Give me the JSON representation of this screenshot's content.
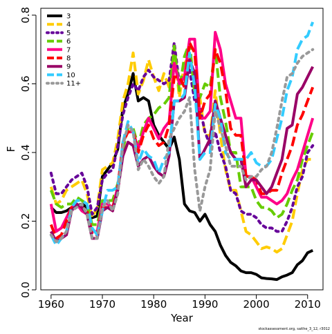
{
  "chart_data": {
    "type": "line",
    "title": "",
    "xlabel": "Year",
    "ylabel": "F",
    "xlim": [
      1958,
      2013
    ],
    "ylim": [
      0.0,
      0.82
    ],
    "xticks": [
      1960,
      1970,
      1980,
      1990,
      2000,
      2010
    ],
    "yticks": [
      0.0,
      0.2,
      0.4,
      0.6,
      0.8
    ],
    "ytick_labels": [
      "0.0",
      "0.2",
      "0.4",
      "0.6",
      "0.8"
    ],
    "grid": false,
    "legend_position": "top-left",
    "footer": "stockassessment.org, saithe_3_12, r3012",
    "series": [
      {
        "name": "3",
        "color": "#000000",
        "dash": "solid",
        "x": [
          1960,
          1961,
          1962,
          1963,
          1964,
          1965,
          1966,
          1967,
          1968,
          1969,
          1970,
          1971,
          1972,
          1973,
          1974,
          1975,
          1976,
          1977,
          1978,
          1979,
          1980,
          1981,
          1982,
          1983,
          1984,
          1985,
          1986,
          1987,
          1988,
          1989,
          1990,
          1991,
          1992,
          1993,
          1994,
          1995,
          1996,
          1997,
          1998,
          1999,
          2000,
          2001,
          2002,
          2003,
          2004,
          2005,
          2006,
          2007,
          2008,
          2009,
          2010,
          2011
        ],
        "y": [
          0.24,
          0.225,
          0.225,
          0.23,
          0.24,
          0.245,
          0.25,
          0.24,
          0.21,
          0.215,
          0.33,
          0.35,
          0.37,
          0.41,
          0.53,
          0.57,
          0.63,
          0.55,
          0.56,
          0.55,
          0.48,
          0.45,
          0.43,
          0.41,
          0.445,
          0.38,
          0.25,
          0.23,
          0.225,
          0.2,
          0.22,
          0.19,
          0.17,
          0.13,
          0.1,
          0.08,
          0.07,
          0.055,
          0.05,
          0.05,
          0.045,
          0.035,
          0.033,
          0.032,
          0.03,
          0.038,
          0.043,
          0.05,
          0.073,
          0.085,
          0.108,
          0.115
        ]
      },
      {
        "name": "4",
        "color": "#ffcc00",
        "dash": "long",
        "x": [
          1960,
          1961,
          1962,
          1963,
          1964,
          1965,
          1966,
          1967,
          1968,
          1969,
          1970,
          1971,
          1972,
          1973,
          1974,
          1975,
          1976,
          1977,
          1978,
          1979,
          1980,
          1981,
          1982,
          1983,
          1984,
          1985,
          1986,
          1987,
          1988,
          1989,
          1990,
          1991,
          1992,
          1993,
          1994,
          1995,
          1996,
          1997,
          1998,
          1999,
          2000,
          2001,
          2002,
          2003,
          2004,
          2005,
          2006,
          2007,
          2008,
          2009,
          2010,
          2011
        ],
        "y": [
          0.3,
          0.25,
          0.26,
          0.29,
          0.3,
          0.31,
          0.32,
          0.28,
          0.21,
          0.24,
          0.35,
          0.36,
          0.37,
          0.44,
          0.55,
          0.6,
          0.69,
          0.57,
          0.61,
          0.67,
          0.62,
          0.58,
          0.63,
          0.59,
          0.7,
          0.56,
          0.66,
          0.68,
          0.59,
          0.56,
          0.45,
          0.45,
          0.58,
          0.45,
          0.35,
          0.29,
          0.29,
          0.23,
          0.17,
          0.16,
          0.14,
          0.12,
          0.125,
          0.12,
          0.11,
          0.12,
          0.16,
          0.2,
          0.28,
          0.35,
          0.38,
          0.38
        ]
      },
      {
        "name": "5",
        "color": "#660099",
        "dash": "dotted",
        "x": [
          1960,
          1961,
          1962,
          1963,
          1964,
          1965,
          1966,
          1967,
          1968,
          1969,
          1970,
          1971,
          1972,
          1973,
          1974,
          1975,
          1976,
          1977,
          1978,
          1979,
          1980,
          1981,
          1982,
          1983,
          1984,
          1985,
          1986,
          1987,
          1988,
          1989,
          1990,
          1991,
          1992,
          1993,
          1994,
          1995,
          1996,
          1997,
          1998,
          1999,
          2000,
          2001,
          2002,
          2003,
          2004,
          2005,
          2006,
          2007,
          2008,
          2009,
          2010,
          2011
        ],
        "y": [
          0.34,
          0.28,
          0.28,
          0.3,
          0.32,
          0.33,
          0.34,
          0.3,
          0.22,
          0.24,
          0.32,
          0.34,
          0.35,
          0.42,
          0.51,
          0.56,
          0.6,
          0.58,
          0.62,
          0.64,
          0.62,
          0.61,
          0.6,
          0.61,
          0.72,
          0.6,
          0.62,
          0.64,
          0.55,
          0.53,
          0.46,
          0.42,
          0.46,
          0.4,
          0.36,
          0.29,
          0.28,
          0.23,
          0.22,
          0.22,
          0.21,
          0.19,
          0.18,
          0.18,
          0.17,
          0.17,
          0.2,
          0.24,
          0.3,
          0.33,
          0.4,
          0.42
        ]
      },
      {
        "name": "6",
        "color": "#66cc00",
        "dash": "long",
        "x": [
          1960,
          1961,
          1962,
          1963,
          1964,
          1965,
          1966,
          1967,
          1968,
          1969,
          1970,
          1971,
          1972,
          1973,
          1974,
          1975,
          1976,
          1977,
          1978,
          1979,
          1980,
          1981,
          1982,
          1983,
          1984,
          1985,
          1986,
          1987,
          1988,
          1989,
          1990,
          1991,
          1992,
          1993,
          1994,
          1995,
          1996,
          1997,
          1998,
          1999,
          2000,
          2001,
          2002,
          2003,
          2004,
          2005,
          2006,
          2007,
          2008,
          2009,
          2010,
          2011
        ],
        "y": [
          0.29,
          0.25,
          0.24,
          0.25,
          0.25,
          0.27,
          0.26,
          0.25,
          0.19,
          0.19,
          0.26,
          0.26,
          0.26,
          0.31,
          0.41,
          0.47,
          0.47,
          0.42,
          0.48,
          0.5,
          0.51,
          0.53,
          0.54,
          0.56,
          0.71,
          0.58,
          0.68,
          0.72,
          0.57,
          0.56,
          0.6,
          0.59,
          0.7,
          0.56,
          0.49,
          0.4,
          0.4,
          0.3,
          0.3,
          0.3,
          0.26,
          0.24,
          0.24,
          0.23,
          0.21,
          0.22,
          0.25,
          0.29,
          0.32,
          0.38,
          0.42,
          0.46
        ]
      },
      {
        "name": "7",
        "color": "#ff0088",
        "dash": "solid",
        "x": [
          1960,
          1961,
          1962,
          1963,
          1964,
          1965,
          1966,
          1967,
          1968,
          1969,
          1970,
          1971,
          1972,
          1973,
          1974,
          1975,
          1976,
          1977,
          1978,
          1979,
          1980,
          1981,
          1982,
          1983,
          1984,
          1985,
          1986,
          1987,
          1988,
          1989,
          1990,
          1991,
          1992,
          1993,
          1994,
          1995,
          1996,
          1997,
          1998,
          1999,
          2000,
          2001,
          2002,
          2003,
          2004,
          2005,
          2006,
          2007,
          2008,
          2009,
          2010,
          2011
        ],
        "y": [
          0.25,
          0.17,
          0.18,
          0.21,
          0.24,
          0.25,
          0.23,
          0.22,
          0.17,
          0.17,
          0.25,
          0.25,
          0.24,
          0.3,
          0.43,
          0.46,
          0.46,
          0.41,
          0.46,
          0.5,
          0.47,
          0.44,
          0.47,
          0.49,
          0.66,
          0.6,
          0.62,
          0.73,
          0.73,
          0.5,
          0.5,
          0.52,
          0.75,
          0.7,
          0.6,
          0.55,
          0.5,
          0.5,
          0.33,
          0.33,
          0.3,
          0.27,
          0.27,
          0.26,
          0.25,
          0.26,
          0.28,
          0.32,
          0.35,
          0.4,
          0.45,
          0.5
        ]
      },
      {
        "name": "8",
        "color": "#ff0000",
        "dash": "long",
        "x": [
          1960,
          1961,
          1962,
          1963,
          1964,
          1965,
          1966,
          1967,
          1968,
          1969,
          1970,
          1971,
          1972,
          1973,
          1974,
          1975,
          1976,
          1977,
          1978,
          1979,
          1980,
          1981,
          1982,
          1983,
          1984,
          1985,
          1986,
          1987,
          1988,
          1989,
          1990,
          1991,
          1992,
          1993,
          1994,
          1995,
          1996,
          1997,
          1998,
          1999,
          2000,
          2001,
          2002,
          2003,
          2004,
          2005,
          2006,
          2007,
          2008,
          2009,
          2010,
          2011
        ],
        "y": [
          0.19,
          0.15,
          0.16,
          0.2,
          0.24,
          0.25,
          0.24,
          0.23,
          0.16,
          0.16,
          0.24,
          0.24,
          0.24,
          0.29,
          0.43,
          0.46,
          0.46,
          0.4,
          0.45,
          0.48,
          0.44,
          0.42,
          0.43,
          0.48,
          0.62,
          0.62,
          0.59,
          0.72,
          0.69,
          0.5,
          0.55,
          0.57,
          0.7,
          0.66,
          0.58,
          0.47,
          0.45,
          0.45,
          0.33,
          0.33,
          0.32,
          0.28,
          0.28,
          0.29,
          0.29,
          0.34,
          0.38,
          0.42,
          0.48,
          0.51,
          0.55,
          0.59
        ]
      },
      {
        "name": "9",
        "color": "#990066",
        "dash": "solid",
        "x": [
          1960,
          1961,
          1962,
          1963,
          1964,
          1965,
          1966,
          1967,
          1968,
          1969,
          1970,
          1971,
          1972,
          1973,
          1974,
          1975,
          1976,
          1977,
          1978,
          1979,
          1980,
          1981,
          1982,
          1983,
          1984,
          1985,
          1986,
          1987,
          1988,
          1989,
          1990,
          1991,
          1992,
          1993,
          1994,
          1995,
          1996,
          1997,
          1998,
          1999,
          2000,
          2001,
          2002,
          2003,
          2004,
          2005,
          2006,
          2007,
          2008,
          2009,
          2010,
          2011
        ],
        "y": [
          0.17,
          0.14,
          0.15,
          0.16,
          0.23,
          0.25,
          0.24,
          0.22,
          0.15,
          0.15,
          0.23,
          0.24,
          0.23,
          0.29,
          0.39,
          0.43,
          0.42,
          0.36,
          0.38,
          0.39,
          0.36,
          0.34,
          0.33,
          0.39,
          0.55,
          0.55,
          0.56,
          0.67,
          0.63,
          0.38,
          0.41,
          0.44,
          0.55,
          0.5,
          0.45,
          0.4,
          0.38,
          0.38,
          0.3,
          0.32,
          0.32,
          0.3,
          0.28,
          0.3,
          0.34,
          0.38,
          0.47,
          0.48,
          0.57,
          0.59,
          0.62,
          0.65
        ]
      },
      {
        "name": "10",
        "color": "#33ccff",
        "dash": "long",
        "x": [
          1960,
          1961,
          1962,
          1963,
          1964,
          1965,
          1966,
          1967,
          1968,
          1969,
          1970,
          1971,
          1972,
          1973,
          1974,
          1975,
          1976,
          1977,
          1978,
          1979,
          1980,
          1981,
          1982,
          1983,
          1984,
          1985,
          1986,
          1987,
          1988,
          1989,
          1990,
          1991,
          1992,
          1993,
          1994,
          1995,
          1996,
          1997,
          1998,
          1999,
          2000,
          2001,
          2002,
          2003,
          2004,
          2005,
          2006,
          2007,
          2008,
          2009,
          2010,
          2011
        ],
        "y": [
          0.16,
          0.13,
          0.15,
          0.17,
          0.24,
          0.26,
          0.26,
          0.25,
          0.18,
          0.16,
          0.23,
          0.29,
          0.29,
          0.3,
          0.43,
          0.49,
          0.46,
          0.37,
          0.41,
          0.39,
          0.38,
          0.34,
          0.38,
          0.4,
          0.55,
          0.55,
          0.57,
          0.69,
          0.59,
          0.38,
          0.4,
          0.4,
          0.54,
          0.5,
          0.4,
          0.38,
          0.38,
          0.38,
          0.38,
          0.4,
          0.37,
          0.36,
          0.36,
          0.38,
          0.44,
          0.5,
          0.58,
          0.62,
          0.7,
          0.73,
          0.74,
          0.78
        ]
      },
      {
        "name": "11+",
        "color": "#999999",
        "dash": "dotted",
        "x": [
          1960,
          1961,
          1962,
          1963,
          1964,
          1965,
          1966,
          1967,
          1968,
          1969,
          1970,
          1971,
          1972,
          1973,
          1974,
          1975,
          1976,
          1977,
          1978,
          1979,
          1980,
          1981,
          1982,
          1983,
          1984,
          1985,
          1986,
          1987,
          1988,
          1989,
          1990,
          1991,
          1992,
          1993,
          1994,
          1995,
          1996,
          1997,
          1998,
          1999,
          2000,
          2001,
          2002,
          2003,
          2004,
          2005,
          2006,
          2007,
          2008,
          2009,
          2010,
          2011
        ],
        "y": [
          0.16,
          0.14,
          0.15,
          0.17,
          0.23,
          0.24,
          0.25,
          0.22,
          0.15,
          0.15,
          0.24,
          0.26,
          0.23,
          0.28,
          0.42,
          0.48,
          0.46,
          0.35,
          0.38,
          0.36,
          0.33,
          0.31,
          0.33,
          0.44,
          0.47,
          0.5,
          0.52,
          0.56,
          0.35,
          0.23,
          0.3,
          0.35,
          0.52,
          0.47,
          0.42,
          0.36,
          0.36,
          0.36,
          0.32,
          0.33,
          0.33,
          0.35,
          0.36,
          0.4,
          0.47,
          0.55,
          0.62,
          0.63,
          0.66,
          0.68,
          0.69,
          0.7
        ]
      }
    ]
  }
}
